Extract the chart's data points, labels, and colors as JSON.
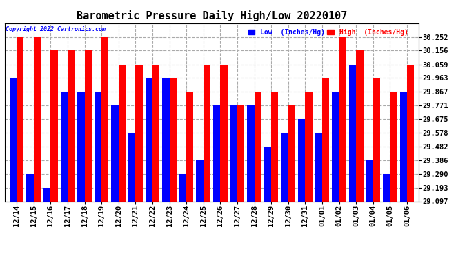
{
  "title": "Barometric Pressure Daily High/Low 20220107",
  "copyright": "Copyright 2022 Cartronics.com",
  "legend_low": "Low  (Inches/Hg)",
  "legend_high": "High  (Inches/Hg)",
  "categories": [
    "12/14",
    "12/15",
    "12/16",
    "12/17",
    "12/18",
    "12/19",
    "12/20",
    "12/21",
    "12/22",
    "12/23",
    "12/24",
    "12/25",
    "12/26",
    "12/27",
    "12/28",
    "12/29",
    "12/30",
    "12/31",
    "01/01",
    "01/02",
    "01/03",
    "01/04",
    "01/05",
    "01/06"
  ],
  "high_values": [
    30.252,
    30.252,
    30.156,
    30.156,
    30.156,
    30.252,
    30.059,
    30.059,
    30.059,
    29.963,
    29.867,
    30.059,
    30.059,
    29.771,
    29.867,
    29.867,
    29.771,
    29.867,
    29.963,
    30.252,
    30.156,
    29.963,
    29.867,
    30.059
  ],
  "low_values": [
    29.963,
    29.29,
    29.193,
    29.867,
    29.867,
    29.867,
    29.771,
    29.578,
    29.963,
    29.963,
    29.29,
    29.386,
    29.771,
    29.771,
    29.771,
    29.482,
    29.578,
    29.675,
    29.578,
    29.867,
    30.059,
    29.386,
    29.29,
    29.867
  ],
  "high_color": "#ff0000",
  "low_color": "#0000ff",
  "background_color": "#ffffff",
  "ylim_min": 29.097,
  "ylim_max": 30.348,
  "yticks": [
    29.097,
    29.193,
    29.29,
    29.386,
    29.482,
    29.578,
    29.675,
    29.771,
    29.867,
    29.963,
    30.059,
    30.156,
    30.252
  ],
  "title_fontsize": 11,
  "tick_fontsize": 7.5,
  "bar_width": 0.42,
  "fig_width": 6.9,
  "fig_height": 3.75,
  "dpi": 100
}
